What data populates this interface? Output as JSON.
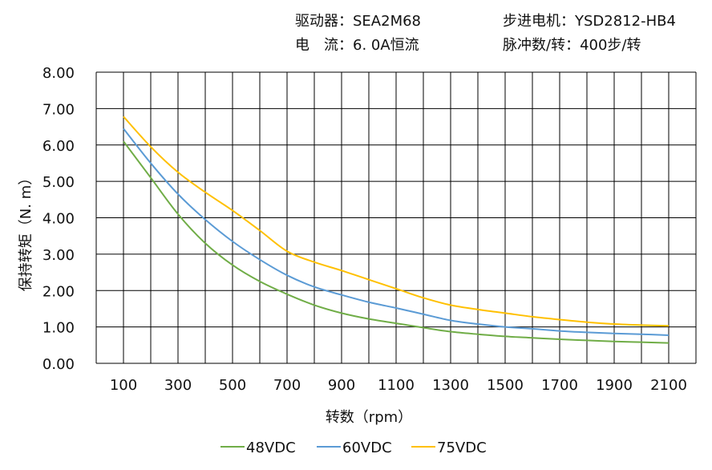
{
  "header": {
    "driver": "驱动器：SEA2M68",
    "current": "电　流：6. 0A恒流",
    "motor": "步进电机：YSD2812-HB4",
    "pulses": "脉冲数/转：400步/转"
  },
  "chart_data": {
    "type": "line",
    "xlabel": "转数（rpm）",
    "ylabel": "保持转矩（N. m）",
    "xlim": [
      0,
      2200
    ],
    "ylim": [
      0,
      8
    ],
    "grid": true,
    "legend_position": "bottom",
    "x_ticks": [
      "100",
      "300",
      "500",
      "700",
      "900",
      "1100",
      "1300",
      "1500",
      "1700",
      "1900",
      "2100"
    ],
    "y_ticks": [
      "0.00",
      "1.00",
      "2.00",
      "3.00",
      "4.00",
      "5.00",
      "6.00",
      "7.00",
      "8.00"
    ],
    "x": [
      100,
      200,
      300,
      400,
      500,
      600,
      700,
      800,
      900,
      1000,
      1100,
      1200,
      1300,
      1400,
      1500,
      1600,
      1700,
      1800,
      1900,
      2000,
      2100
    ],
    "series": [
      {
        "name": "48VDC",
        "color": "#70ad47",
        "values": [
          6.1,
          5.1,
          4.1,
          3.3,
          2.7,
          2.25,
          1.9,
          1.6,
          1.38,
          1.22,
          1.1,
          0.98,
          0.87,
          0.8,
          0.74,
          0.7,
          0.66,
          0.63,
          0.6,
          0.58,
          0.56
        ]
      },
      {
        "name": "60VDC",
        "color": "#5b9bd5",
        "values": [
          6.45,
          5.5,
          4.65,
          3.95,
          3.35,
          2.85,
          2.42,
          2.1,
          1.88,
          1.68,
          1.52,
          1.35,
          1.18,
          1.08,
          1.0,
          0.95,
          0.89,
          0.85,
          0.82,
          0.8,
          0.77
        ]
      },
      {
        "name": "75VDC",
        "color": "#ffc000",
        "values": [
          6.78,
          5.95,
          5.25,
          4.7,
          4.2,
          3.65,
          3.08,
          2.78,
          2.55,
          2.3,
          2.05,
          1.8,
          1.6,
          1.48,
          1.38,
          1.28,
          1.2,
          1.13,
          1.08,
          1.05,
          1.03
        ]
      }
    ]
  }
}
